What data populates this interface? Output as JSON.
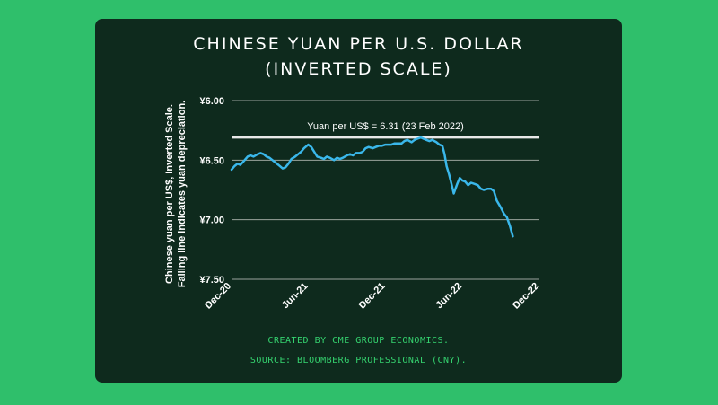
{
  "chart_data": {
    "type": "line",
    "title_line1": "Chinese Yuan per U.S. Dollar",
    "title_line2": "(Inverted Scale)",
    "ylabel_line1": "Chinese yuan per US$, Inverted Scale.",
    "ylabel_line2": "Falling line indicates yuan depreciation.",
    "y_ticks": [
      6.0,
      6.5,
      7.0,
      7.5
    ],
    "y_tick_labels": [
      "¥6.00",
      "¥6.50",
      "¥7.00",
      "¥7.50"
    ],
    "ylim": [
      6.0,
      7.5
    ],
    "y_inverted": true,
    "x_ticks": [
      "2020-12-01",
      "2021-06-01",
      "2021-12-01",
      "2022-06-01",
      "2022-12-01"
    ],
    "x_tick_labels": [
      "Dec-20",
      "Jun-21",
      "Dec-21",
      "Jun-22",
      "Dec-22"
    ],
    "xlim": [
      "2020-12-01",
      "2022-12-01"
    ],
    "grid": "horizontal",
    "line_color": "#3ab7ea",
    "reference_line": {
      "value": 6.31,
      "label": "Yuan per US$ = 6.31 (23 Feb 2022)",
      "color": "#e8e8e8"
    },
    "series": [
      {
        "values": [
          [
            "2020-12-01",
            6.58
          ],
          [
            "2020-12-08",
            6.55
          ],
          [
            "2020-12-15",
            6.53
          ],
          [
            "2020-12-22",
            6.54
          ],
          [
            "2021-01-01",
            6.5
          ],
          [
            "2021-01-08",
            6.47
          ],
          [
            "2021-01-15",
            6.46
          ],
          [
            "2021-01-22",
            6.47
          ],
          [
            "2021-02-01",
            6.45
          ],
          [
            "2021-02-08",
            6.44
          ],
          [
            "2021-02-15",
            6.45
          ],
          [
            "2021-02-22",
            6.47
          ],
          [
            "2021-03-01",
            6.48
          ],
          [
            "2021-03-08",
            6.5
          ],
          [
            "2021-03-15",
            6.52
          ],
          [
            "2021-03-22",
            6.54
          ],
          [
            "2021-04-01",
            6.57
          ],
          [
            "2021-04-08",
            6.56
          ],
          [
            "2021-04-15",
            6.53
          ],
          [
            "2021-04-22",
            6.49
          ],
          [
            "2021-05-01",
            6.47
          ],
          [
            "2021-05-08",
            6.45
          ],
          [
            "2021-05-15",
            6.43
          ],
          [
            "2021-05-22",
            6.4
          ],
          [
            "2021-06-01",
            6.37
          ],
          [
            "2021-06-08",
            6.39
          ],
          [
            "2021-06-15",
            6.43
          ],
          [
            "2021-06-22",
            6.47
          ],
          [
            "2021-07-01",
            6.48
          ],
          [
            "2021-07-08",
            6.49
          ],
          [
            "2021-07-15",
            6.47
          ],
          [
            "2021-07-22",
            6.48
          ],
          [
            "2021-08-01",
            6.5
          ],
          [
            "2021-08-08",
            6.48
          ],
          [
            "2021-08-15",
            6.49
          ],
          [
            "2021-08-22",
            6.48
          ],
          [
            "2021-09-01",
            6.46
          ],
          [
            "2021-09-08",
            6.45
          ],
          [
            "2021-09-15",
            6.46
          ],
          [
            "2021-09-22",
            6.44
          ],
          [
            "2021-10-01",
            6.44
          ],
          [
            "2021-10-08",
            6.43
          ],
          [
            "2021-10-15",
            6.4
          ],
          [
            "2021-10-22",
            6.39
          ],
          [
            "2021-11-01",
            6.4
          ],
          [
            "2021-11-08",
            6.39
          ],
          [
            "2021-11-15",
            6.38
          ],
          [
            "2021-11-22",
            6.38
          ],
          [
            "2021-12-01",
            6.37
          ],
          [
            "2021-12-08",
            6.37
          ],
          [
            "2021-12-15",
            6.37
          ],
          [
            "2021-12-22",
            6.36
          ],
          [
            "2022-01-01",
            6.36
          ],
          [
            "2022-01-08",
            6.36
          ],
          [
            "2022-01-15",
            6.34
          ],
          [
            "2022-01-22",
            6.33
          ],
          [
            "2022-02-01",
            6.35
          ],
          [
            "2022-02-08",
            6.33
          ],
          [
            "2022-02-15",
            6.32
          ],
          [
            "2022-02-23",
            6.31
          ],
          [
            "2022-03-01",
            6.32
          ],
          [
            "2022-03-08",
            6.33
          ],
          [
            "2022-03-15",
            6.34
          ],
          [
            "2022-03-22",
            6.33
          ],
          [
            "2022-04-01",
            6.35
          ],
          [
            "2022-04-08",
            6.37
          ],
          [
            "2022-04-15",
            6.38
          ],
          [
            "2022-04-20",
            6.45
          ],
          [
            "2022-04-25",
            6.55
          ],
          [
            "2022-05-01",
            6.62
          ],
          [
            "2022-05-08",
            6.72
          ],
          [
            "2022-05-12",
            6.78
          ],
          [
            "2022-05-16",
            6.74
          ],
          [
            "2022-05-20",
            6.7
          ],
          [
            "2022-05-26",
            6.65
          ],
          [
            "2022-06-01",
            6.67
          ],
          [
            "2022-06-08",
            6.68
          ],
          [
            "2022-06-15",
            6.71
          ],
          [
            "2022-06-22",
            6.69
          ],
          [
            "2022-07-01",
            6.7
          ],
          [
            "2022-07-08",
            6.71
          ],
          [
            "2022-07-15",
            6.74
          ],
          [
            "2022-07-22",
            6.75
          ],
          [
            "2022-08-01",
            6.74
          ],
          [
            "2022-08-08",
            6.74
          ],
          [
            "2022-08-15",
            6.76
          ],
          [
            "2022-08-22",
            6.84
          ],
          [
            "2022-09-01",
            6.9
          ],
          [
            "2022-09-08",
            6.95
          ],
          [
            "2022-09-15",
            6.98
          ],
          [
            "2022-09-22",
            7.05
          ],
          [
            "2022-09-29",
            7.14
          ]
        ]
      }
    ]
  },
  "footer": {
    "credit": "Created by CME Group Economics.",
    "source": "Source: Bloomberg Professional (CNY)."
  }
}
